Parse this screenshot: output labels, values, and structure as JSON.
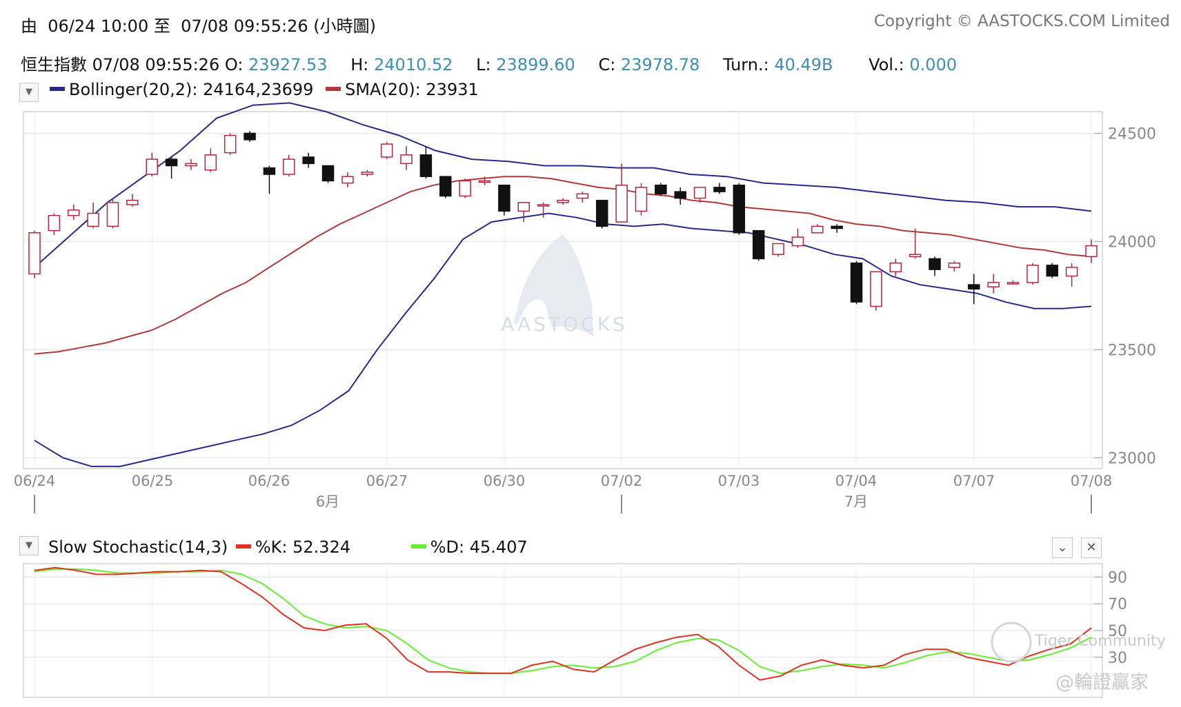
{
  "header": {
    "range_text": "由  06/24 10:00 至  07/08 09:55:26 (小時圖)",
    "copyright": "Copyright © AASTOCKS.COM Limited"
  },
  "quote": {
    "name": "恒生指數",
    "time": "07/08 09:55:26",
    "open_label": "O:",
    "open": "23927.53",
    "high_label": "H:",
    "high": "24010.52",
    "low_label": "L:",
    "low": "23899.60",
    "close_label": "C:",
    "close": "23978.78",
    "turn_label": "Turn.:",
    "turn": "40.49B",
    "vol_label": "Vol.:",
    "vol": "0.000"
  },
  "main_legend": {
    "bollinger": "Bollinger(20,2): 24164,23699",
    "sma": "SMA(20): 23931"
  },
  "stoch_legend": {
    "title": "Slow Stochastic(14,3)",
    "k": "%K: 52.324",
    "d": "%D: 45.407"
  },
  "watermarks": {
    "logo": "AASTOCKS",
    "community": "Tiger Community",
    "chinese": "@輪證贏家"
  },
  "colors": {
    "bollinger": "#28288c",
    "sma": "#b03a3a",
    "up_candle": "#b3253f",
    "down_candle": "#111111",
    "k_line": "#e03020",
    "d_line": "#66ee33",
    "value_text": "#3d8fb6"
  },
  "chart_data": [
    {
      "type": "candlestick",
      "ylim": [
        22950,
        24600
      ],
      "yticks": [
        23000,
        23500,
        24000,
        24500
      ],
      "x_labels": [
        "06/24",
        "06/25",
        "06/26",
        "06/27",
        "06/30",
        "07/02",
        "07/03",
        "07/04",
        "07/07",
        "07/08"
      ],
      "month_labels": [
        "6月",
        "7月"
      ],
      "grid": true,
      "ohlc": [
        [
          23850,
          24050,
          23830,
          24040
        ],
        [
          24050,
          24130,
          24030,
          24120
        ],
        [
          24120,
          24170,
          24100,
          24145
        ],
        [
          24070,
          24180,
          24060,
          24130
        ],
        [
          24070,
          24200,
          24060,
          24180
        ],
        [
          24170,
          24220,
          24160,
          24190
        ],
        [
          24310,
          24410,
          24300,
          24380
        ],
        [
          24380,
          24390,
          24290,
          24350
        ],
        [
          24350,
          24380,
          24330,
          24360
        ],
        [
          24330,
          24430,
          24320,
          24400
        ],
        [
          24410,
          24500,
          24400,
          24490
        ],
        [
          24500,
          24510,
          24460,
          24470
        ],
        [
          24340,
          24350,
          24220,
          24310
        ],
        [
          24310,
          24400,
          24300,
          24380
        ],
        [
          24390,
          24410,
          24340,
          24360
        ],
        [
          24350,
          24350,
          24270,
          24280
        ],
        [
          24270,
          24320,
          24250,
          24300
        ],
        [
          24310,
          24330,
          24300,
          24320
        ],
        [
          24390,
          24460,
          24380,
          24450
        ],
        [
          24360,
          24440,
          24330,
          24400
        ],
        [
          24400,
          24440,
          24290,
          24300
        ],
        [
          24300,
          24300,
          24200,
          24210
        ],
        [
          24210,
          24290,
          24200,
          24280
        ],
        [
          24280,
          24300,
          24260,
          24280
        ],
        [
          24260,
          24260,
          24120,
          24140
        ],
        [
          24140,
          24180,
          24090,
          24180
        ],
        [
          24170,
          24180,
          24110,
          24170
        ],
        [
          24180,
          24200,
          24170,
          24190
        ],
        [
          24200,
          24230,
          24180,
          24220
        ],
        [
          24190,
          24190,
          24060,
          24070
        ],
        [
          24090,
          24360,
          24090,
          24260
        ],
        [
          24140,
          24270,
          24120,
          24250
        ],
        [
          24260,
          24270,
          24210,
          24220
        ],
        [
          24230,
          24250,
          24170,
          24200
        ],
        [
          24200,
          24250,
          24180,
          24250
        ],
        [
          24250,
          24270,
          24220,
          24230
        ],
        [
          24260,
          24270,
          24030,
          24040
        ],
        [
          24050,
          24050,
          23910,
          23920
        ],
        [
          23940,
          23990,
          23930,
          23990
        ],
        [
          23980,
          24060,
          23970,
          24020
        ],
        [
          24040,
          24080,
          24040,
          24070
        ],
        [
          24070,
          24080,
          24040,
          24060
        ],
        [
          23900,
          23910,
          23710,
          23720
        ],
        [
          23700,
          23860,
          23680,
          23860
        ],
        [
          23860,
          23920,
          23840,
          23900
        ],
        [
          23930,
          24060,
          23920,
          23940
        ],
        [
          23920,
          23930,
          23840,
          23870
        ],
        [
          23880,
          23910,
          23860,
          23900
        ],
        [
          23800,
          23850,
          23710,
          23780
        ],
        [
          23790,
          23850,
          23760,
          23810
        ],
        [
          23810,
          23820,
          23800,
          23810
        ],
        [
          23810,
          23900,
          23800,
          23890
        ],
        [
          23890,
          23900,
          23830,
          23840
        ],
        [
          23840,
          23900,
          23790,
          23880
        ],
        [
          23930,
          24010,
          23900,
          23980
        ]
      ],
      "bollinger_upper": [
        23880,
        24030,
        24180,
        24300,
        24420,
        24570,
        24630,
        24640,
        24600,
        24540,
        24490,
        24420,
        24380,
        24370,
        24350,
        24350,
        24340,
        24340,
        24310,
        24300,
        24270,
        24260,
        24250,
        24230,
        24210,
        24190,
        24180,
        24160,
        24160,
        24140
      ],
      "bollinger_lower": [
        23080,
        23000,
        22960,
        22960,
        22990,
        23020,
        23050,
        23080,
        23110,
        23150,
        23220,
        23310,
        23500,
        23670,
        23830,
        24010,
        24090,
        24110,
        24130,
        24110,
        24080,
        24070,
        24080,
        24060,
        24050,
        24040,
        24010,
        23980,
        23940,
        23920,
        23840,
        23800,
        23780,
        23760,
        23720,
        23690,
        23690,
        23700
      ],
      "sma": [
        23480,
        23490,
        23510,
        23530,
        23560,
        23590,
        23640,
        23700,
        23760,
        23810,
        23880,
        23950,
        24020,
        24080,
        24130,
        24180,
        24230,
        24260,
        24280,
        24290,
        24300,
        24300,
        24290,
        24270,
        24250,
        24240,
        24220,
        24210,
        24190,
        24180,
        24160,
        24150,
        24140,
        24130,
        24100,
        24080,
        24070,
        24050,
        24040,
        24030,
        24010,
        23990,
        23970,
        23960,
        23940,
        23930
      ]
    },
    {
      "type": "line",
      "title": "Slow Stochastic(14,3)",
      "ylim": [
        0,
        100
      ],
      "yticks": [
        30,
        50,
        70,
        90
      ],
      "series": [
        {
          "name": "%K",
          "values": [
            95,
            97,
            95,
            92,
            92,
            93,
            94,
            94,
            95,
            94,
            85,
            75,
            62,
            52,
            50,
            54,
            55,
            44,
            28,
            19,
            19,
            18,
            18,
            18,
            24,
            27,
            21,
            19,
            28,
            36,
            41,
            45,
            47,
            38,
            24,
            13,
            16,
            24,
            28,
            24,
            22,
            24,
            32,
            36,
            36,
            30,
            27,
            24,
            31,
            36,
            40,
            52
          ]
        },
        {
          "name": "%D",
          "values": [
            94,
            96,
            96,
            95,
            93,
            93,
            93,
            94,
            94,
            95,
            92,
            85,
            74,
            61,
            55,
            52,
            53,
            50,
            40,
            28,
            22,
            19,
            18,
            18,
            20,
            23,
            24,
            22,
            23,
            27,
            35,
            41,
            44,
            43,
            35,
            23,
            18,
            20,
            23,
            25,
            24,
            22,
            26,
            31,
            34,
            33,
            30,
            27,
            28,
            32,
            37,
            45
          ]
        }
      ]
    }
  ]
}
